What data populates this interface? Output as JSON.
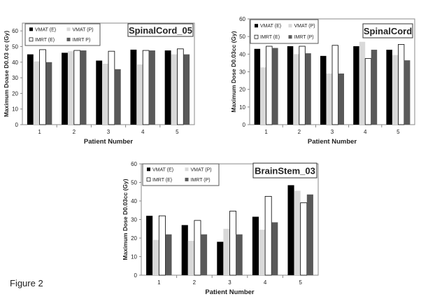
{
  "figure_label": "Figure 2",
  "chart_data": [
    {
      "type": "bar",
      "title": "SpinalCord_05",
      "xlabel": "Patient Number",
      "ylabel": "Maximum Doase D0.03 cc (Gy)",
      "categories": [
        "1",
        "2",
        "3",
        "4",
        "5"
      ],
      "yticks": [
        "0",
        "10",
        "20",
        "30",
        "40",
        "50",
        "60"
      ],
      "ylim": [
        0,
        65
      ],
      "legend": "top-left",
      "series": [
        {
          "name": "VMAT (E)",
          "color": "#000000",
          "values": [
            45,
            46,
            41,
            48,
            47.5
          ]
        },
        {
          "name": "VMAT (P)",
          "color": "#d9d9d9",
          "values": [
            40.5,
            47,
            39,
            38.5,
            45
          ]
        },
        {
          "name": "IMRT (E)",
          "color": "#ffffff",
          "values": [
            48,
            47.5,
            47,
            47.5,
            48.5
          ]
        },
        {
          "name": "IMRT P)",
          "color": "#595959",
          "values": [
            40,
            47.5,
            35.5,
            47.5,
            45
          ]
        }
      ]
    },
    {
      "type": "bar",
      "title": "SpinalCord",
      "xlabel": "Patient Number",
      "ylabel": "Maximum Dose D0.03cc (Gy)",
      "categories": [
        "1",
        "2",
        "3",
        "4",
        "5"
      ],
      "yticks": [
        "0",
        "10",
        "20",
        "30",
        "40",
        "50",
        "60"
      ],
      "ylim": [
        0,
        60
      ],
      "legend": "top-left",
      "series": [
        {
          "name": "VMAT (E)",
          "color": "#000000",
          "values": [
            43,
            44.5,
            39,
            44.5,
            42.5
          ]
        },
        {
          "name": "VMAT (P)",
          "color": "#d9d9d9",
          "values": [
            32.5,
            40,
            29,
            47,
            39.5
          ]
        },
        {
          "name": "IMRT (E)",
          "color": "#ffffff",
          "values": [
            44.5,
            44.5,
            45,
            37.5,
            45.5
          ]
        },
        {
          "name": "IMRT (P)",
          "color": "#595959",
          "values": [
            43.5,
            40.5,
            29,
            42.5,
            36.5
          ]
        }
      ]
    },
    {
      "type": "bar",
      "title": "BrainStem_03",
      "xlabel": "Patient Number",
      "ylabel": "Maximum Dose D0.03cc (Gy)",
      "categories": [
        "1",
        "2",
        "3",
        "4",
        "5"
      ],
      "yticks": [
        "0",
        "10",
        "20",
        "30",
        "40",
        "50",
        "60"
      ],
      "ylim": [
        0,
        60
      ],
      "legend": "top-left",
      "series": [
        {
          "name": "VMAT (E)",
          "color": "#000000",
          "values": [
            32,
            27,
            18,
            31.5,
            48.5
          ]
        },
        {
          "name": "VMAT (P)",
          "color": "#d9d9d9",
          "values": [
            19,
            18.5,
            25,
            24.5,
            45.5
          ]
        },
        {
          "name": "IMRT (E)",
          "color": "#ffffff",
          "values": [
            32,
            29.5,
            34.5,
            42.5,
            39
          ]
        },
        {
          "name": "IMRT (P)",
          "color": "#595959",
          "values": [
            22,
            22,
            22,
            28.5,
            43.5
          ]
        }
      ]
    }
  ]
}
